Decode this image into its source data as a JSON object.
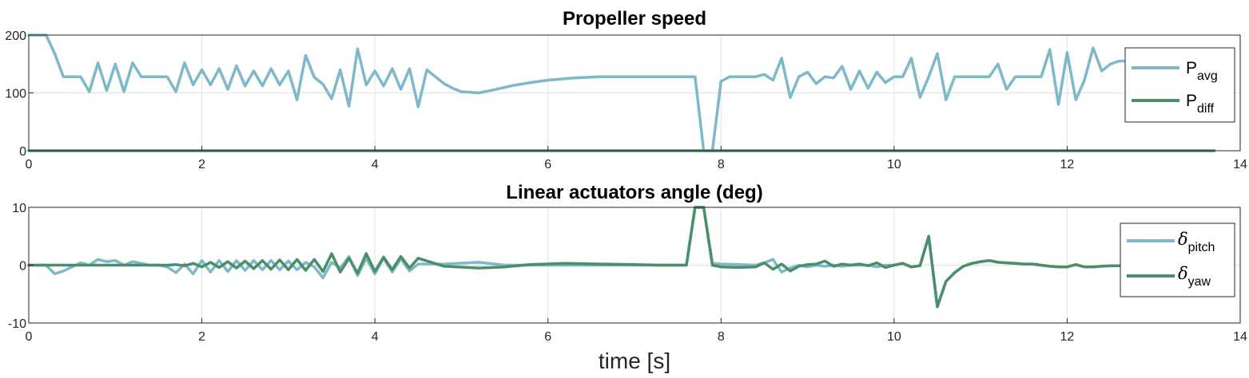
{
  "chart_data": [
    {
      "type": "line",
      "title": "Propeller speed",
      "xlabel": "",
      "ylabel": "",
      "xlim": [
        0,
        14
      ],
      "ylim": [
        0,
        200
      ],
      "xticks": [
        "0",
        "2",
        "4",
        "6",
        "8",
        "10",
        "12",
        "14"
      ],
      "yticks": [
        "0",
        "100",
        "200"
      ],
      "grid": true,
      "legend_position": "top-right",
      "series": [
        {
          "name": "avg",
          "legend_prefix": "P",
          "legend_sub": "avg",
          "color": "#7DB9C8",
          "x": [
            0,
            0.2,
            0.3,
            0.4,
            0.5,
            0.6,
            0.7,
            0.8,
            0.9,
            1.0,
            1.1,
            1.2,
            1.3,
            1.4,
            1.5,
            1.6,
            1.7,
            1.8,
            1.9,
            2.0,
            2.1,
            2.2,
            2.3,
            2.4,
            2.5,
            2.6,
            2.7,
            2.8,
            2.9,
            3.0,
            3.1,
            3.2,
            3.3,
            3.4,
            3.5,
            3.6,
            3.7,
            3.8,
            3.9,
            4.0,
            4.1,
            4.2,
            4.3,
            4.4,
            4.5,
            4.6,
            4.7,
            4.8,
            4.9,
            5.0,
            5.2,
            5.4,
            5.6,
            5.8,
            6.0,
            6.3,
            6.6,
            7.0,
            7.3,
            7.6,
            7.7,
            7.8,
            7.9,
            8.0,
            8.1,
            8.2,
            8.3,
            8.4,
            8.5,
            8.6,
            8.7,
            8.8,
            8.9,
            9.0,
            9.1,
            9.2,
            9.3,
            9.4,
            9.5,
            9.6,
            9.7,
            9.8,
            9.9,
            10.0,
            10.1,
            10.2,
            10.3,
            10.4,
            10.5,
            10.6,
            10.7,
            10.8,
            10.9,
            11.0,
            11.1,
            11.2,
            11.3,
            11.4,
            11.5,
            11.6,
            11.7,
            11.8,
            11.9,
            12.0,
            12.1,
            12.2,
            12.3,
            12.4,
            12.5,
            12.6,
            12.7,
            12.8
          ],
          "values": [
            200,
            200,
            168,
            128,
            128,
            128,
            102,
            152,
            104,
            150,
            102,
            152,
            128,
            128,
            128,
            128,
            102,
            152,
            114,
            140,
            114,
            142,
            106,
            147,
            112,
            138,
            112,
            142,
            114,
            138,
            88,
            165,
            127,
            115,
            90,
            140,
            77,
            176,
            114,
            138,
            112,
            142,
            106,
            142,
            76,
            140,
            128,
            116,
            108,
            102,
            100,
            106,
            113,
            118,
            122,
            126,
            128,
            128,
            128,
            128,
            128,
            0,
            0,
            120,
            128,
            128,
            128,
            128,
            132,
            122,
            160,
            92,
            128,
            136,
            116,
            128,
            126,
            146,
            106,
            138,
            108,
            136,
            118,
            128,
            128,
            160,
            92,
            128,
            168,
            88,
            128,
            128,
            128,
            128,
            128,
            150,
            106,
            128,
            128,
            128,
            128,
            175,
            80,
            170,
            88,
            122,
            178,
            138,
            150,
            155,
            155,
            152
          ]
        },
        {
          "name": "diff",
          "legend_prefix": "P",
          "legend_sub": "diff",
          "color": "#4A8F6A",
          "x": [
            0,
            13.7
          ],
          "values": [
            0,
            0
          ]
        }
      ]
    },
    {
      "type": "line",
      "title": "Linear actuators angle (deg)",
      "xlabel": "time [s]",
      "ylabel": "",
      "xlim": [
        0,
        14
      ],
      "ylim": [
        -10,
        10
      ],
      "xticks": [
        "0",
        "2",
        "4",
        "6",
        "8",
        "10",
        "12",
        "14"
      ],
      "yticks": [
        "-10",
        "0",
        "10"
      ],
      "grid": true,
      "legend_position": "right",
      "series": [
        {
          "name": "pitch",
          "legend_prefix": "δ",
          "legend_sub": "pitch",
          "color": "#7DB9C8",
          "x": [
            0,
            0.2,
            0.3,
            0.4,
            0.5,
            0.6,
            0.7,
            0.8,
            0.9,
            1.0,
            1.1,
            1.2,
            1.3,
            1.4,
            1.5,
            1.6,
            1.7,
            1.8,
            1.9,
            2.0,
            2.1,
            2.2,
            2.3,
            2.4,
            2.5,
            2.6,
            2.7,
            2.8,
            2.9,
            3.0,
            3.1,
            3.2,
            3.3,
            3.4,
            3.5,
            3.6,
            3.7,
            3.8,
            3.9,
            4.0,
            4.1,
            4.2,
            4.3,
            4.4,
            4.5,
            4.8,
            5.2,
            5.5,
            5.8,
            6.2,
            6.6,
            7.0,
            7.3,
            7.6,
            7.7,
            7.8,
            7.9,
            8.0,
            8.2,
            8.4,
            8.5,
            8.6,
            8.7,
            8.8,
            8.9,
            9.0,
            9.1,
            9.2,
            9.3,
            9.4,
            9.5,
            9.6,
            9.7,
            9.8,
            9.9,
            10.0,
            10.1,
            10.2,
            10.3,
            10.4,
            10.5,
            10.6,
            10.7,
            10.8,
            10.9,
            11.0,
            11.1,
            11.2,
            11.3,
            11.4,
            11.5,
            11.6,
            11.7,
            11.8,
            11.9,
            12.0,
            12.1,
            12.2,
            12.3,
            12.4,
            12.5,
            12.6,
            12.7,
            12.8
          ],
          "values": [
            0,
            0,
            -1.5,
            -1,
            -0.3,
            0.4,
            0,
            1,
            0.6,
            0.8,
            0,
            0.6,
            0.3,
            0,
            0,
            -0.3,
            -1.3,
            0.2,
            -1.5,
            0.8,
            -1.2,
            0.8,
            -1.1,
            0.8,
            -0.9,
            0.8,
            -0.8,
            0.8,
            -0.8,
            0.7,
            -0.8,
            0.5,
            -0.3,
            -2.2,
            0.5,
            -0.5,
            1.5,
            -1.8,
            1.2,
            -1.5,
            1.2,
            -1.2,
            1.1,
            -1.0,
            0.2,
            0.2,
            0.5,
            0,
            0,
            0,
            0,
            0,
            0,
            0,
            10,
            10,
            0.3,
            0.2,
            0.1,
            0,
            0.4,
            1.0,
            -1.2,
            -0.5,
            0,
            -0.3,
            0,
            -0.2,
            0,
            -0.2,
            0,
            0,
            0,
            -0.3,
            0,
            0,
            0.3,
            -0.3,
            -0.1,
            5,
            -7.2,
            -2.8,
            -1.3,
            -0.2,
            0.3,
            0.6,
            0.8,
            0.5,
            0.4,
            0.3,
            0.2,
            0.2,
            0,
            -0.2,
            -0.3,
            -0.3,
            0.1,
            -0.3,
            -0.3,
            -0.2,
            -0.1,
            -0.1,
            0,
            0
          ]
        },
        {
          "name": "yaw",
          "legend_prefix": "δ",
          "legend_sub": "yaw",
          "color": "#4A8F6A",
          "x": [
            0,
            1.5,
            1.6,
            1.7,
            1.8,
            1.9,
            2.0,
            2.1,
            2.2,
            2.3,
            2.4,
            2.5,
            2.6,
            2.7,
            2.8,
            2.9,
            3.0,
            3.1,
            3.2,
            3.3,
            3.4,
            3.5,
            3.6,
            3.7,
            3.8,
            3.9,
            4.0,
            4.1,
            4.2,
            4.3,
            4.4,
            4.5,
            4.8,
            5.2,
            5.5,
            5.8,
            6.2,
            6.6,
            7.0,
            7.3,
            7.6,
            7.7,
            7.8,
            7.9,
            8.0,
            8.2,
            8.4,
            8.5,
            8.6,
            8.7,
            8.8,
            8.9,
            9.0,
            9.1,
            9.2,
            9.3,
            9.4,
            9.5,
            9.6,
            9.7,
            9.8,
            9.9,
            10.0,
            10.1,
            10.2,
            10.3,
            10.4,
            10.5,
            10.6,
            10.7,
            10.8,
            10.9,
            11.0,
            11.1,
            11.2,
            11.3,
            11.4,
            11.5,
            11.6,
            11.7,
            11.8,
            11.9,
            12.0,
            12.1,
            12.2,
            12.3,
            12.4,
            12.5,
            12.6,
            12.7,
            12.8
          ],
          "values": [
            0,
            0,
            0,
            0.1,
            -0.1,
            0.3,
            -0.3,
            0.5,
            -0.4,
            0.6,
            -0.5,
            0.7,
            -0.6,
            0.8,
            -0.7,
            0.9,
            -0.8,
            1.0,
            -0.9,
            1.0,
            -1.1,
            2.0,
            -1.2,
            1.2,
            -1.4,
            2.0,
            -1.1,
            1.4,
            -0.8,
            1.5,
            -0.5,
            1.2,
            -0.2,
            -0.5,
            -0.3,
            0.1,
            0.3,
            0.2,
            0.1,
            0,
            0,
            10,
            10,
            0,
            -0.3,
            -0.4,
            -0.3,
            0.4,
            -0.7,
            0.2,
            -1.0,
            -0.2,
            0.1,
            0.2,
            0.7,
            -0.2,
            0.2,
            0,
            0.2,
            -0.1,
            0.4,
            -0.4,
            0,
            0.3,
            -0.3,
            -0.1,
            5,
            -7.2,
            -2.8,
            -1.3,
            -0.2,
            0.3,
            0.6,
            0.8,
            0.5,
            0.4,
            0.3,
            0.2,
            0.2,
            0,
            -0.2,
            -0.3,
            -0.3,
            0.1,
            -0.3,
            -0.3,
            -0.2,
            -0.1,
            -0.1,
            0,
            0
          ]
        }
      ]
    }
  ]
}
